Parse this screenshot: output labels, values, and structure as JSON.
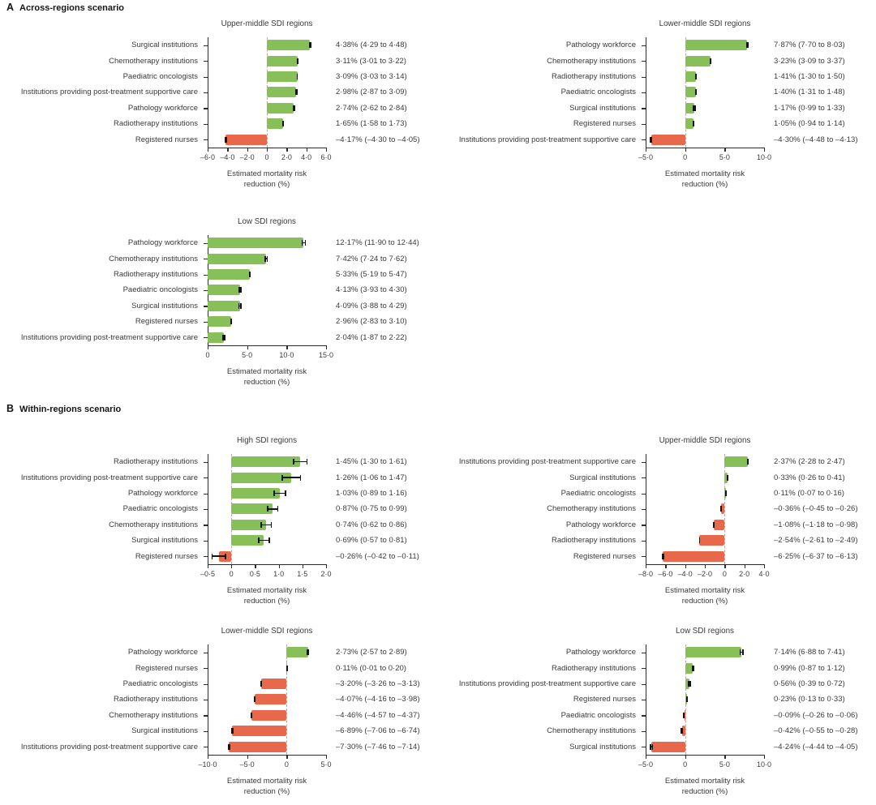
{
  "panels": [
    {
      "letter": "A",
      "title": "Across-regions scenario"
    },
    {
      "letter": "B",
      "title": "Within-regions scenario"
    }
  ],
  "axis_caption_line1": "Estimated mortality risk",
  "axis_caption_line2": "reduction (%)",
  "colors": {
    "positive_bar": "#87bf58",
    "negative_bar": "#e8684b",
    "error_bar": "#141414",
    "zero_dashed_line": "#73c5cb",
    "axis": "#2b2b2b",
    "text": "#3a3a3a"
  },
  "chart_data": [
    {
      "type": "bar",
      "orientation": "horizontal",
      "panel": "A",
      "title": "Upper-middle SDI regions",
      "xlabel": "Estimated mortality risk reduction (%)",
      "xlim": [
        -6,
        6
      ],
      "xticks": [
        -6,
        -4,
        -2,
        0,
        2,
        4,
        6
      ],
      "xtick_labels": [
        "–6·0",
        "–4·0",
        "–2·0",
        "0",
        "2·0",
        "4·0",
        "6·0"
      ],
      "rows": [
        {
          "category": "Surgical institutions",
          "value": 4.38,
          "ci": [
            4.29,
            4.48
          ],
          "label": "4·38% (4·29 to 4·48)"
        },
        {
          "category": "Chemotherapy institutions",
          "value": 3.11,
          "ci": [
            3.01,
            3.22
          ],
          "label": "3·11% (3·01 to 3·22)"
        },
        {
          "category": "Paediatric oncologists",
          "value": 3.09,
          "ci": [
            3.03,
            3.14
          ],
          "label": "3·09% (3·03 to 3·14)"
        },
        {
          "category": "Institutions providing post-treatment supportive care",
          "value": 2.98,
          "ci": [
            2.87,
            3.09
          ],
          "label": "2·98% (2·87 to 3·09)"
        },
        {
          "category": "Pathology workforce",
          "value": 2.74,
          "ci": [
            2.62,
            2.84
          ],
          "label": "2·74% (2·62 to 2·84)"
        },
        {
          "category": "Radiotherapy institutions",
          "value": 1.65,
          "ci": [
            1.58,
            1.73
          ],
          "label": "1·65% (1·58 to 1·73)"
        },
        {
          "category": "Registered nurses",
          "value": -4.17,
          "ci": [
            -4.3,
            -4.05
          ],
          "label": "–4·17% (–4·30 to –4·05)"
        }
      ]
    },
    {
      "type": "bar",
      "orientation": "horizontal",
      "panel": "A",
      "title": "Lower-middle SDI regions",
      "xlabel": "Estimated mortality risk reduction (%)",
      "xlim": [
        -5,
        10
      ],
      "xticks": [
        -5,
        0,
        5,
        10
      ],
      "xtick_labels": [
        "–5·0",
        "0",
        "5·0",
        "10·0"
      ],
      "rows": [
        {
          "category": "Pathology workforce",
          "value": 7.87,
          "ci": [
            7.7,
            8.03
          ],
          "label": "7·87% (7·70 to 8·03)"
        },
        {
          "category": "Chemotherapy institutions",
          "value": 3.23,
          "ci": [
            3.09,
            3.37
          ],
          "label": "3·23% (3·09 to 3·37)"
        },
        {
          "category": "Radiotherapy institutions",
          "value": 1.41,
          "ci": [
            1.3,
            1.5
          ],
          "label": "1·41% (1·30 to 1·50)"
        },
        {
          "category": "Paediatric oncologists",
          "value": 1.4,
          "ci": [
            1.31,
            1.48
          ],
          "label": "1·40% (1·31 to 1·48)"
        },
        {
          "category": "Surgical institutions",
          "value": 1.17,
          "ci": [
            0.99,
            1.33
          ],
          "label": "1·17% (0·99 to 1·33)"
        },
        {
          "category": "Registered nurses",
          "value": 1.05,
          "ci": [
            0.94,
            1.14
          ],
          "label": "1·05% (0·94 to 1·14)"
        },
        {
          "category": "Institutions providing post-treatment supportive care",
          "value": -4.3,
          "ci": [
            -4.48,
            -4.13
          ],
          "label": "–4·30% (–4·48 to –4·13)"
        }
      ]
    },
    {
      "type": "bar",
      "orientation": "horizontal",
      "panel": "A",
      "title": "Low SDI regions",
      "xlabel": "Estimated mortality risk reduction (%)",
      "xlim": [
        0,
        15
      ],
      "xticks": [
        0,
        5,
        10,
        15
      ],
      "xtick_labels": [
        "0",
        "5·0",
        "10·0",
        "15·0"
      ],
      "rows": [
        {
          "category": "Pathology workforce",
          "value": 12.17,
          "ci": [
            11.9,
            12.44
          ],
          "label": "12·17% (11·90 to 12·44)"
        },
        {
          "category": "Chemotherapy institutions",
          "value": 7.42,
          "ci": [
            7.24,
            7.62
          ],
          "label": "7·42% (7·24 to 7·62)"
        },
        {
          "category": "Radiotherapy institutions",
          "value": 5.33,
          "ci": [
            5.19,
            5.47
          ],
          "label": "5·33% (5·19 to 5·47)"
        },
        {
          "category": "Paediatric oncologists",
          "value": 4.13,
          "ci": [
            3.93,
            4.3
          ],
          "label": "4·13% (3·93 to 4·30)"
        },
        {
          "category": "Surgical institutions",
          "value": 4.09,
          "ci": [
            3.88,
            4.29
          ],
          "label": "4·09% (3·88 to 4·29)"
        },
        {
          "category": "Registered nurses",
          "value": 2.96,
          "ci": [
            2.83,
            3.1
          ],
          "label": "2·96% (2·83 to 3·10)"
        },
        {
          "category": "Institutions providing post-treatment supportive care",
          "value": 2.04,
          "ci": [
            1.87,
            2.22
          ],
          "label": "2·04% (1·87 to 2·22)"
        }
      ]
    },
    {
      "type": "bar",
      "orientation": "horizontal",
      "panel": "B",
      "title": "High SDI regions",
      "xlabel": "Estimated mortality risk reduction (%)",
      "xlim": [
        -0.5,
        2
      ],
      "xticks": [
        -0.5,
        0,
        0.5,
        1,
        1.5,
        2
      ],
      "xtick_labels": [
        "–0·5",
        "0",
        "0·5",
        "1·0",
        "1·5",
        "2·0"
      ],
      "rows": [
        {
          "category": "Radiotherapy institutions",
          "value": 1.45,
          "ci": [
            1.3,
            1.61
          ],
          "label": "1·45% (1·30 to 1·61)"
        },
        {
          "category": "Institutions providing post-treatment supportive care",
          "value": 1.26,
          "ci": [
            1.06,
            1.47
          ],
          "label": "1·26% (1·06 to 1·47)"
        },
        {
          "category": "Pathology workforce",
          "value": 1.03,
          "ci": [
            0.89,
            1.16
          ],
          "label": "1·03% (0·89 to 1·16)"
        },
        {
          "category": "Paediatric oncologists",
          "value": 0.87,
          "ci": [
            0.75,
            0.99
          ],
          "label": "0·87% (0·75 to 0·99)"
        },
        {
          "category": "Chemotherapy institutions",
          "value": 0.74,
          "ci": [
            0.62,
            0.86
          ],
          "label": "0·74% (0·62 to 0·86)"
        },
        {
          "category": "Surgical institutions",
          "value": 0.69,
          "ci": [
            0.57,
            0.81
          ],
          "label": "0·69% (0·57 to 0·81)"
        },
        {
          "category": "Registered nurses",
          "value": -0.26,
          "ci": [
            -0.42,
            -0.11
          ],
          "label": "–0·26% (–0·42 to –0·11)"
        }
      ]
    },
    {
      "type": "bar",
      "orientation": "horizontal",
      "panel": "B",
      "title": "Upper-middle SDI regions",
      "xlabel": "Estimated mortality risk reduction (%)",
      "xlim": [
        -8,
        4
      ],
      "xticks": [
        -8,
        -6,
        -4,
        -2,
        0,
        2,
        4
      ],
      "xtick_labels": [
        "–8·0",
        "–6·0",
        "–4·0",
        "–2·0",
        "0",
        "2·0",
        "4·0"
      ],
      "rows": [
        {
          "category": "Institutions providing post-treatment supportive care",
          "value": 2.37,
          "ci": [
            2.28,
            2.47
          ],
          "label": "2·37% (2·28 to 2·47)"
        },
        {
          "category": "Surgical institutions",
          "value": 0.33,
          "ci": [
            0.26,
            0.41
          ],
          "label": "0·33% (0·26 to 0·41)"
        },
        {
          "category": "Paediatric oncologists",
          "value": 0.11,
          "ci": [
            0.07,
            0.16
          ],
          "label": "0·11% (0·07 to 0·16)"
        },
        {
          "category": "Chemotherapy institutions",
          "value": -0.36,
          "ci": [
            -0.45,
            -0.26
          ],
          "label": "–0·36% (–0·45 to –0·26)"
        },
        {
          "category": "Pathology workforce",
          "value": -1.08,
          "ci": [
            -1.18,
            -0.98
          ],
          "label": "–1·08% (–1·18 to –0·98)"
        },
        {
          "category": "Radiotherapy institutions",
          "value": -2.54,
          "ci": [
            -2.61,
            -2.49
          ],
          "label": "–2·54% (–2·61 to –2·49)"
        },
        {
          "category": "Registered nurses",
          "value": -6.25,
          "ci": [
            -6.37,
            -6.13
          ],
          "label": "–6·25% (–6·37 to –6·13)"
        }
      ]
    },
    {
      "type": "bar",
      "orientation": "horizontal",
      "panel": "B",
      "title": "Lower-middle SDI regions",
      "xlabel": "Estimated mortality risk reduction (%)",
      "xlim": [
        -10,
        5
      ],
      "xticks": [
        -10,
        -5,
        0,
        5
      ],
      "xtick_labels": [
        "–10·0",
        "–5·0",
        "0",
        "5·0"
      ],
      "rows": [
        {
          "category": "Pathology workforce",
          "value": 2.73,
          "ci": [
            2.57,
            2.89
          ],
          "label": "2·73% (2·57 to 2·89)"
        },
        {
          "category": "Registered nurses",
          "value": 0.11,
          "ci": [
            0.01,
            0.2
          ],
          "label": "0·11% (0·01 to 0·20)"
        },
        {
          "category": "Paediatric oncologists",
          "value": -3.2,
          "ci": [
            -3.26,
            -3.13
          ],
          "label": "–3·20% (–3·26 to –3·13)"
        },
        {
          "category": "Radiotherapy institutions",
          "value": -4.07,
          "ci": [
            -4.16,
            -3.98
          ],
          "label": "–4·07% (–4·16 to –3·98)"
        },
        {
          "category": "Chemotherapy institutions",
          "value": -4.46,
          "ci": [
            -4.57,
            -4.37
          ],
          "label": "–4·46% (–4·57 to –4·37)"
        },
        {
          "category": "Surgical institutions",
          "value": -6.89,
          "ci": [
            -7.06,
            -6.74
          ],
          "label": "–6·89% (–7·06 to –6·74)"
        },
        {
          "category": "Institutions providing post-treatment supportive care",
          "value": -7.3,
          "ci": [
            -7.46,
            -7.14
          ],
          "label": "–7·30% (–7·46 to –7·14)"
        }
      ]
    },
    {
      "type": "bar",
      "orientation": "horizontal",
      "panel": "B",
      "title": "Low SDI regions",
      "xlabel": "Estimated mortality risk reduction (%)",
      "xlim": [
        -5,
        10
      ],
      "xticks": [
        -5,
        0,
        5,
        10
      ],
      "xtick_labels": [
        "–5·0",
        "0",
        "5·0",
        "10·0"
      ],
      "rows": [
        {
          "category": "Pathology workforce",
          "value": 7.14,
          "ci": [
            6.88,
            7.41
          ],
          "label": "7·14% (6·88 to 7·41)"
        },
        {
          "category": "Radiotherapy institutions",
          "value": 0.99,
          "ci": [
            0.87,
            1.12
          ],
          "label": "0·99% (0·87 to 1·12)"
        },
        {
          "category": "Institutions providing post-treatment supportive care",
          "value": 0.56,
          "ci": [
            0.39,
            0.72
          ],
          "label": "0·56% (0·39 to 0·72)"
        },
        {
          "category": "Registered nurses",
          "value": 0.23,
          "ci": [
            0.13,
            0.33
          ],
          "label": "0·23% (0·13 to 0·33)"
        },
        {
          "category": "Paediatric oncologists",
          "value": -0.09,
          "ci": [
            -0.26,
            -0.06
          ],
          "label": "–0·09% (–0·26 to –0·06)"
        },
        {
          "category": "Chemotherapy institutions",
          "value": -0.42,
          "ci": [
            -0.55,
            -0.28
          ],
          "label": "–0·42% (–0·55 to –0·28)"
        },
        {
          "category": "Surgical institutions",
          "value": -4.24,
          "ci": [
            -4.44,
            -4.05
          ],
          "label": "–4·24% (–4·44 to –4·05)"
        }
      ]
    }
  ]
}
